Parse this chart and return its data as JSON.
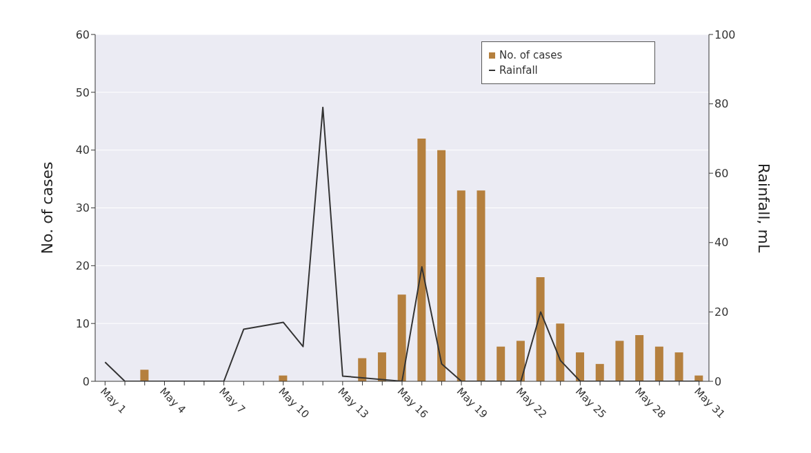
{
  "chart_data": {
    "type": "bar",
    "ylabel": "No. of cases",
    "y2label": "Rainfall, mL",
    "categories": [
      "May 1",
      null,
      null,
      "May 4",
      null,
      null,
      "May 7",
      null,
      null,
      "May 10",
      null,
      null,
      "May 13",
      null,
      null,
      "May 16",
      null,
      null,
      "May 19",
      null,
      null,
      "May 22",
      null,
      null,
      "May 25",
      null,
      null,
      "May 28",
      null,
      null,
      "May 31"
    ],
    "series": [
      {
        "name": "No. of cases",
        "color": "#b5803e",
        "values": [
          0,
          0,
          2,
          0,
          0,
          0,
          0,
          0,
          0,
          1,
          0,
          0,
          0,
          4,
          5,
          15,
          42,
          40,
          33,
          33,
          6,
          7,
          18,
          10,
          5,
          3,
          7,
          8,
          6,
          5,
          1
        ]
      },
      {
        "name": "Rainfall",
        "type": "line",
        "axis": "y2",
        "color": "#333333",
        "values": [
          5.5,
          0,
          0,
          0,
          0,
          0,
          0,
          15,
          16,
          17,
          10,
          79,
          1.5,
          1,
          0.5,
          0,
          33,
          5,
          0,
          0,
          0,
          0,
          20,
          6,
          0,
          0,
          0,
          0,
          0,
          0,
          0
        ]
      }
    ],
    "ylim": [
      0,
      60
    ],
    "yticks": [
      0,
      10,
      20,
      30,
      40,
      50,
      60
    ],
    "y2lim": [
      0,
      100
    ],
    "y2ticks": [
      0,
      20,
      40,
      60,
      80,
      100
    ],
    "grid": "y",
    "legend": "top right",
    "marker": "none"
  }
}
